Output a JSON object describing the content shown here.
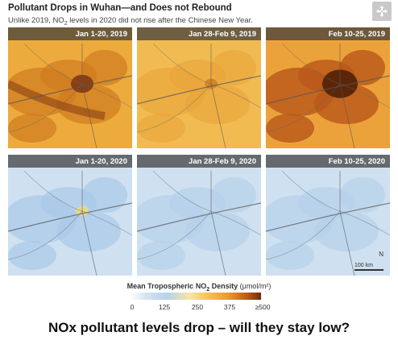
{
  "figure": {
    "title": "Pollutant Drops in Wuhan—and Does not Rebound",
    "subtitle_before": "Unlike 2019, NO",
    "subtitle_sub": "2",
    "subtitle_after": " levels in 2020 did not rise after the Chinese New Year."
  },
  "expand_icon": "expand-arrows-icon",
  "panels": [
    {
      "label": "Jan 1-20, 2019",
      "year": 2019,
      "level": "high"
    },
    {
      "label": "Jan 28-Feb 9, 2019",
      "year": 2019,
      "level": "medium"
    },
    {
      "label": "Feb 10-25, 2019",
      "year": 2019,
      "level": "very-high"
    },
    {
      "label": "Jan 1-20, 2020",
      "year": 2020,
      "level": "low"
    },
    {
      "label": "Jan 28-Feb 9, 2020",
      "year": 2020,
      "level": "very-low"
    },
    {
      "label": "Feb 10-25, 2020",
      "year": 2020,
      "level": "very-low"
    }
  ],
  "scale": {
    "label": "100 km",
    "north": "N"
  },
  "legend": {
    "title_before": "Mean Tropospheric NO",
    "title_sub": "2",
    "title_after": " Density",
    "unit": "(μmol/m²)",
    "ticks": [
      "0",
      "125",
      "250",
      "375",
      "≥500"
    ]
  },
  "colors": {
    "low": "#b6d2ec",
    "mid": "#f7c65a",
    "high": "#ec9a25",
    "peak": "#6e2b0a"
  },
  "caption": "NOx pollutant levels drop – will they stay low?"
}
